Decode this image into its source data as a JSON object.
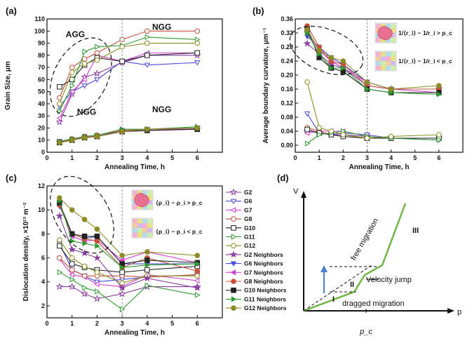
{
  "colors": {
    "G2": "#8a3fa0",
    "G6": "#4a4ad8",
    "G7": "#d23ed2",
    "G8": "#c8503c",
    "G10": "#222222",
    "G11": "#2e9a2e",
    "G12": "#8c8c24",
    "accent": "#6cb33f"
  },
  "chart_data": [
    {
      "id": "a",
      "panel_label": "(a)",
      "type": "line",
      "xlabel": "Annealing Time, h",
      "ylabel": "Grain Size, μm",
      "xlim": [
        0,
        7
      ],
      "ylim": [
        0,
        110
      ],
      "xticks": [
        0,
        1,
        2,
        3,
        4,
        5,
        6
      ],
      "yticks": [
        0,
        10,
        20,
        30,
        40,
        50,
        60,
        70,
        80,
        90,
        100,
        110
      ],
      "vline": 3,
      "annotations": [
        "AGG",
        "NGG",
        "NGG",
        "NGG"
      ],
      "x": [
        0.5,
        1,
        1.5,
        2,
        3,
        4,
        6
      ],
      "series": [
        {
          "name": "G2",
          "group": "main",
          "marker": "star",
          "filled": false,
          "values": [
            25,
            48,
            62,
            65,
            74,
            80,
            80
          ]
        },
        {
          "name": "G6",
          "group": "main",
          "marker": "triangle-down",
          "filled": false,
          "values": [
            38,
            50,
            55,
            60,
            75,
            72,
            74
          ]
        },
        {
          "name": "G7",
          "group": "main",
          "marker": "triangle-left",
          "filled": false,
          "values": [
            28,
            50,
            60,
            80,
            75,
            82,
            82
          ]
        },
        {
          "name": "G8",
          "group": "main",
          "marker": "circle",
          "filled": false,
          "values": [
            45,
            70,
            77,
            82,
            93,
            100,
            100
          ]
        },
        {
          "name": "G10",
          "group": "main",
          "marker": "square",
          "filled": false,
          "values": [
            54,
            60,
            72,
            78,
            75,
            80,
            82
          ]
        },
        {
          "name": "G11",
          "group": "main",
          "marker": "triangle-right",
          "filled": false,
          "values": [
            34,
            55,
            83,
            87,
            88,
            95,
            93
          ]
        },
        {
          "name": "G12",
          "group": "main",
          "marker": "circle",
          "filled": false,
          "values": [
            40,
            66,
            73,
            76,
            87,
            90,
            90
          ]
        },
        {
          "name": "G2 Neighbors",
          "group": "nbr",
          "marker": "star",
          "filled": true,
          "values": [
            8,
            10,
            12,
            13,
            17,
            18,
            19
          ]
        },
        {
          "name": "G6 Neighbors",
          "group": "nbr",
          "marker": "triangle-down",
          "filled": true,
          "values": [
            9,
            10,
            12,
            13,
            18,
            19,
            20
          ]
        },
        {
          "name": "G7 Neighbors",
          "group": "nbr",
          "marker": "triangle-left",
          "filled": true,
          "values": [
            8,
            10,
            13,
            13,
            17,
            18,
            20
          ]
        },
        {
          "name": "G8 Neighbors",
          "group": "nbr",
          "marker": "circle",
          "filled": true,
          "values": [
            8,
            11,
            13,
            14,
            18,
            19,
            20
          ]
        },
        {
          "name": "G10 Neighbors",
          "group": "nbr",
          "marker": "square",
          "filled": true,
          "values": [
            8,
            10,
            12,
            13,
            17,
            18,
            19
          ]
        },
        {
          "name": "G11 Neighbors",
          "group": "nbr",
          "marker": "triangle-right",
          "filled": true,
          "values": [
            9,
            11,
            13,
            14,
            19,
            19,
            21
          ]
        },
        {
          "name": "G12 Neighbors",
          "group": "nbr",
          "marker": "circle",
          "filled": true,
          "values": [
            8,
            10,
            12,
            13,
            17,
            19,
            20
          ]
        }
      ]
    },
    {
      "id": "b",
      "panel_label": "(b)",
      "type": "line",
      "xlabel": "Annealing Time, h",
      "ylabel": "Average boundary curvature, μm⁻¹",
      "xlim": [
        0,
        7
      ],
      "ylim": [
        -0.02,
        0.36
      ],
      "xticks": [
        0,
        1,
        2,
        3,
        4,
        5,
        6
      ],
      "yticks": [
        0.0,
        0.04,
        0.08,
        0.12,
        0.16,
        0.2,
        0.24,
        0.28,
        0.32,
        0.36
      ],
      "vline": 3,
      "legend_text": [
        "1/⟨r_i⟩ − 1/r_i > p_c",
        "1/⟨r_i⟩ − 1/r_i < p_c"
      ],
      "x": [
        0.5,
        1,
        1.5,
        2,
        3,
        4,
        6
      ],
      "series": [
        {
          "name": "G2",
          "group": "main",
          "marker": "star",
          "filled": false,
          "values": [
            0.04,
            0.035,
            0.03,
            0.03,
            0.025,
            0.02,
            0.02
          ]
        },
        {
          "name": "G6",
          "group": "main",
          "marker": "triangle-down",
          "filled": false,
          "values": [
            0.09,
            0.035,
            0.03,
            0.035,
            0.03,
            0.02,
            0.015
          ]
        },
        {
          "name": "G7",
          "group": "main",
          "marker": "triangle-left",
          "filled": false,
          "values": [
            0.035,
            0.04,
            0.04,
            0.04,
            0.025,
            0.02,
            0.02
          ]
        },
        {
          "name": "G8",
          "group": "main",
          "marker": "circle",
          "filled": false,
          "values": [
            0.05,
            0.04,
            0.03,
            0.025,
            0.02,
            0.02,
            0.02
          ]
        },
        {
          "name": "G10",
          "group": "main",
          "marker": "square",
          "filled": false,
          "values": [
            0.045,
            0.035,
            0.03,
            0.025,
            0.02,
            0.02,
            0.02
          ]
        },
        {
          "name": "G11",
          "group": "main",
          "marker": "triangle-right",
          "filled": false,
          "values": [
            0.005,
            0.03,
            0.035,
            0.04,
            0.025,
            0.02,
            0.015
          ]
        },
        {
          "name": "G12",
          "group": "main",
          "marker": "circle",
          "filled": false,
          "values": [
            0.18,
            0.05,
            0.04,
            0.03,
            0.02,
            0.025,
            0.03
          ]
        },
        {
          "name": "G2 Neighbors",
          "group": "nbr",
          "marker": "star",
          "filled": true,
          "values": [
            0.29,
            0.26,
            0.23,
            0.22,
            0.17,
            0.16,
            0.16
          ]
        },
        {
          "name": "G6 Neighbors",
          "group": "nbr",
          "marker": "triangle-down",
          "filled": true,
          "values": [
            0.31,
            0.28,
            0.25,
            0.23,
            0.18,
            0.16,
            0.16
          ]
        },
        {
          "name": "G7 Neighbors",
          "group": "nbr",
          "marker": "triangle-left",
          "filled": true,
          "values": [
            0.32,
            0.27,
            0.24,
            0.22,
            0.18,
            0.16,
            0.15
          ]
        },
        {
          "name": "G8 Neighbors",
          "group": "nbr",
          "marker": "circle",
          "filled": true,
          "values": [
            0.34,
            0.28,
            0.24,
            0.23,
            0.17,
            0.16,
            0.16
          ]
        },
        {
          "name": "G10 Neighbors",
          "group": "nbr",
          "marker": "square",
          "filled": true,
          "values": [
            0.33,
            0.25,
            0.22,
            0.21,
            0.16,
            0.15,
            0.15
          ]
        },
        {
          "name": "G11 Neighbors",
          "group": "nbr",
          "marker": "triangle-right",
          "filled": true,
          "values": [
            0.32,
            0.26,
            0.22,
            0.22,
            0.16,
            0.15,
            0.145
          ]
        },
        {
          "name": "G12 Neighbors",
          "group": "nbr",
          "marker": "circle",
          "filled": true,
          "values": [
            0.33,
            0.27,
            0.25,
            0.24,
            0.18,
            0.16,
            0.17
          ]
        }
      ]
    },
    {
      "id": "c",
      "panel_label": "(c)",
      "type": "line",
      "xlabel": "Annealing Time, h",
      "ylabel": "Dislocation density, ×10¹³ m⁻²",
      "xlim": [
        0,
        7
      ],
      "ylim": [
        1,
        12
      ],
      "xticks": [
        0,
        1,
        2,
        3,
        4,
        5,
        6
      ],
      "yticks": [
        2,
        4,
        6,
        8,
        10,
        12
      ],
      "vline": 3,
      "legend_text": [
        "⟨ρ_i⟩ − ρ_i > p_c",
        "⟨ρ_i⟩ − ρ_i < p_c"
      ],
      "x": [
        0.5,
        1,
        1.5,
        2,
        3,
        4,
        6
      ],
      "series": [
        {
          "name": "G2",
          "group": "main",
          "marker": "star",
          "filled": false,
          "values": [
            3.6,
            3.6,
            3.0,
            2.6,
            3.0,
            3.6,
            3.6
          ]
        },
        {
          "name": "G6",
          "group": "main",
          "marker": "triangle-down",
          "filled": false,
          "values": [
            7.2,
            5.0,
            4.5,
            4.0,
            4.2,
            4.4,
            4.6
          ]
        },
        {
          "name": "G7",
          "group": "main",
          "marker": "triangle-left",
          "filled": false,
          "values": [
            5.9,
            4.6,
            4.4,
            3.8,
            3.6,
            4.6,
            4.1
          ]
        },
        {
          "name": "G8",
          "group": "main",
          "marker": "circle",
          "filled": false,
          "values": [
            6.0,
            5.0,
            4.5,
            4.5,
            4.5,
            4.4,
            4.6
          ]
        },
        {
          "name": "G10",
          "group": "main",
          "marker": "square",
          "filled": false,
          "values": [
            7.0,
            5.5,
            5.2,
            5.0,
            4.8,
            5.0,
            5.3
          ]
        },
        {
          "name": "G11",
          "group": "main",
          "marker": "triangle-right",
          "filled": false,
          "values": [
            4.8,
            4.2,
            3.5,
            3.2,
            1.7,
            3.7,
            2.9
          ]
        },
        {
          "name": "G12",
          "group": "main",
          "marker": "circle",
          "filled": false,
          "values": [
            7.5,
            6.0,
            5.3,
            4.8,
            3.9,
            4.5,
            4.5
          ]
        },
        {
          "name": "G2 Neighbors",
          "group": "nbr",
          "marker": "star",
          "filled": true,
          "values": [
            9.5,
            6.7,
            6.4,
            6.0,
            3.5,
            4.3,
            3.5
          ]
        },
        {
          "name": "G6 Neighbors",
          "group": "nbr",
          "marker": "triangle-down",
          "filled": true,
          "values": [
            10.3,
            8.0,
            7.6,
            7.8,
            5.5,
            5.5,
            5.5
          ]
        },
        {
          "name": "G7 Neighbors",
          "group": "nbr",
          "marker": "triangle-left",
          "filled": true,
          "values": [
            10.5,
            7.8,
            7.4,
            7.5,
            5.8,
            6.5,
            5.6
          ]
        },
        {
          "name": "G8 Neighbors",
          "group": "nbr",
          "marker": "circle",
          "filled": true,
          "values": [
            10.4,
            8.0,
            7.6,
            7.4,
            5.2,
            6.0,
            4.9
          ]
        },
        {
          "name": "G10 Neighbors",
          "group": "nbr",
          "marker": "square",
          "filled": true,
          "values": [
            10.6,
            8.0,
            7.8,
            7.8,
            5.5,
            5.8,
            5.6
          ]
        },
        {
          "name": "G11 Neighbors",
          "group": "nbr",
          "marker": "triangle-right",
          "filled": true,
          "values": [
            10.8,
            7.4,
            7.2,
            7.0,
            5.2,
            5.4,
            5.5
          ]
        },
        {
          "name": "G12 Neighbors",
          "group": "nbr",
          "marker": "circle",
          "filled": true,
          "values": [
            11.0,
            10.0,
            9.2,
            8.4,
            6.2,
            6.5,
            6.2
          ]
        }
      ]
    }
  ],
  "diagram_d": {
    "panel_label": "(d)",
    "y_axis_label": "V",
    "x_axis_label": "p",
    "pc_label": "p_c",
    "labels": {
      "free": "free migration",
      "jump": "Velocity jump",
      "dragged": "dragged migration",
      "I": "I",
      "II": "II",
      "III": "III"
    }
  }
}
